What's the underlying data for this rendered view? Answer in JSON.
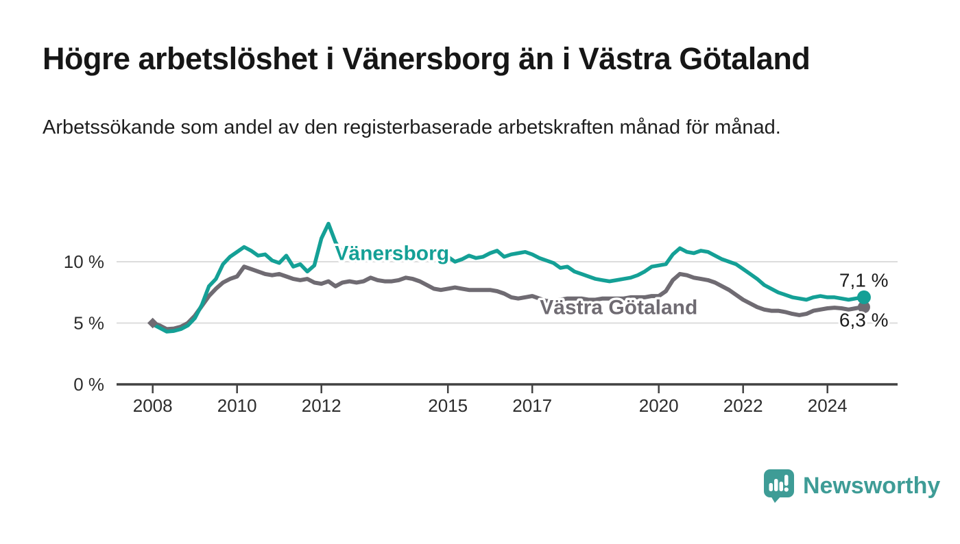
{
  "header": {
    "title": "Högre arbetslöshet i Vänersborg än i Västra Götaland",
    "subtitle": "Arbetssökande som andel av den registerbaserade arbetskraften månad för månad."
  },
  "chart_data": {
    "type": "line",
    "title": "Högre arbetslöshet i Vänersborg än i Västra Götaland",
    "xlabel": "",
    "ylabel": "",
    "x_start_year": 2008,
    "x_step_months": 2,
    "ylim": [
      0,
      13.5
    ],
    "grid": "horizontal",
    "legend_position": "inline-labels",
    "x_ticks": [
      2008,
      2010,
      2012,
      2015,
      2017,
      2020,
      2022,
      2024
    ],
    "y_ticks": [
      {
        "value": 0,
        "label": "0 %"
      },
      {
        "value": 5,
        "label": "5 %"
      },
      {
        "value": 10,
        "label": "10 %"
      }
    ],
    "series": [
      {
        "name": "Västra Götaland",
        "color": "#6F6B72",
        "end_label": "6,3 %",
        "end_value": 6.3,
        "values": [
          5.0,
          4.8,
          4.5,
          4.55,
          4.7,
          5.0,
          5.6,
          6.4,
          7.2,
          7.8,
          8.3,
          8.6,
          8.8,
          9.6,
          9.4,
          9.2,
          9.0,
          8.9,
          9.0,
          8.8,
          8.6,
          8.5,
          8.6,
          8.3,
          8.2,
          8.4,
          8.0,
          8.3,
          8.4,
          8.3,
          8.4,
          8.7,
          8.5,
          8.4,
          8.4,
          8.5,
          8.7,
          8.6,
          8.4,
          8.1,
          7.8,
          7.7,
          7.8,
          7.9,
          7.8,
          7.7,
          7.7,
          7.7,
          7.7,
          7.6,
          7.4,
          7.1,
          7.0,
          7.1,
          7.2,
          7.0,
          6.8,
          6.8,
          6.9,
          7.0,
          7.0,
          7.0,
          6.9,
          6.9,
          7.0,
          7.0,
          7.0,
          7.0,
          7.1,
          7.1,
          7.1,
          7.2,
          7.2,
          7.6,
          8.5,
          9.0,
          8.9,
          8.7,
          8.6,
          8.5,
          8.3,
          8.0,
          7.7,
          7.3,
          6.9,
          6.6,
          6.3,
          6.1,
          6.0,
          6.0,
          5.9,
          5.75,
          5.65,
          5.75,
          6.0,
          6.1,
          6.2,
          6.25,
          6.2,
          6.1,
          6.2,
          6.3
        ]
      },
      {
        "name": "Vänersborg",
        "color": "#14A096",
        "end_label": "7,1 %",
        "end_value": 7.1,
        "values": [
          4.9,
          4.6,
          4.3,
          4.35,
          4.5,
          4.8,
          5.4,
          6.5,
          8.0,
          8.6,
          9.8,
          10.4,
          10.8,
          11.2,
          10.9,
          10.5,
          10.6,
          10.1,
          9.9,
          10.5,
          9.6,
          9.8,
          9.2,
          9.7,
          11.9,
          13.1,
          11.6,
          10.7,
          10.4,
          10.5,
          10.3,
          10.5,
          10.4,
          10.2,
          10.4,
          10.3,
          10.5,
          10.3,
          10.4,
          10.6,
          10.5,
          10.6,
          10.4,
          10.0,
          10.2,
          10.5,
          10.3,
          10.4,
          10.7,
          10.9,
          10.4,
          10.6,
          10.7,
          10.8,
          10.6,
          10.3,
          10.1,
          9.9,
          9.5,
          9.6,
          9.2,
          9.0,
          8.8,
          8.6,
          8.5,
          8.4,
          8.5,
          8.6,
          8.7,
          8.9,
          9.2,
          9.6,
          9.7,
          9.8,
          10.6,
          11.1,
          10.8,
          10.7,
          10.9,
          10.8,
          10.5,
          10.2,
          10.0,
          9.8,
          9.4,
          9.0,
          8.6,
          8.1,
          7.8,
          7.5,
          7.3,
          7.1,
          7.0,
          6.9,
          7.1,
          7.2,
          7.1,
          7.1,
          7.0,
          6.9,
          7.0,
          7.1
        ]
      }
    ],
    "series_labels": [
      {
        "text": "Vänersborg",
        "year": 2012.32,
        "value": 10.15,
        "color": "#14A096"
      },
      {
        "text": "Västra Götaland",
        "year": 2017.18,
        "value": 5.72,
        "color": "#6F6B72"
      }
    ],
    "end_labels": [
      {
        "text": "7,1 %",
        "year": 2024.28,
        "value": 7.95
      },
      {
        "text": "6,3 %",
        "year": 2024.28,
        "value": 4.72
      }
    ],
    "axis_color": "#414141",
    "gridline_color": "#dcdcdc"
  },
  "branding": {
    "logo_text": "Newsworthy",
    "logo_color": "#3E9C96"
  }
}
